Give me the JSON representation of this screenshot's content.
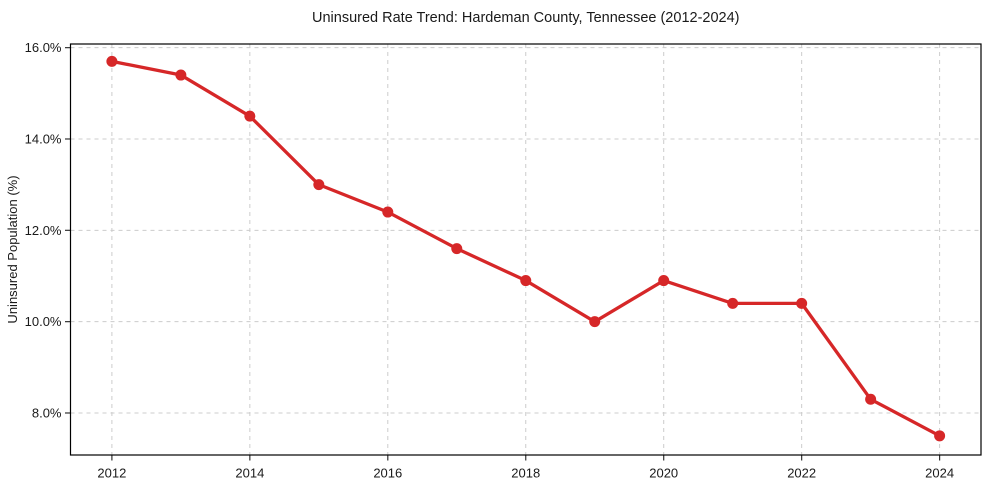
{
  "chart_data": {
    "type": "line",
    "title": "Uninsured Rate Trend: Hardeman County, Tennessee (2012-2024)",
    "xlabel": "",
    "ylabel": "Uninsured Population (%)",
    "x": [
      2012,
      2013,
      2014,
      2015,
      2016,
      2017,
      2018,
      2019,
      2020,
      2021,
      2022,
      2023,
      2024
    ],
    "series": [
      {
        "name": "Uninsured rate",
        "values": [
          15.7,
          15.4,
          14.5,
          13.0,
          12.4,
          11.6,
          10.9,
          10.0,
          10.9,
          10.4,
          10.4,
          8.3,
          7.5
        ],
        "color": "#d62728",
        "marker": "circle",
        "line_width": 3.3,
        "marker_radius": 5.5
      }
    ],
    "xticks": {
      "values": [
        2012,
        2014,
        2016,
        2018,
        2020,
        2022,
        2024
      ],
      "labels": [
        "2012",
        "2014",
        "2016",
        "2018",
        "2020",
        "2022",
        "2024"
      ]
    },
    "yticks": {
      "values": [
        8,
        10,
        12,
        14,
        16
      ],
      "labels": [
        "8.0%",
        "10.0%",
        "12.0%",
        "14.0%",
        "16.0%"
      ]
    },
    "xlim": [
      2011.4,
      2024.6
    ],
    "ylim": [
      7.08,
      16.08
    ],
    "grid": true,
    "grid_color": "#cccccc",
    "grid_dash": "4 4",
    "axis_color": "#000000",
    "tick_color": "#333333",
    "text_color": "#1a1a1a",
    "background_color": "#ffffff",
    "legend": "none"
  }
}
